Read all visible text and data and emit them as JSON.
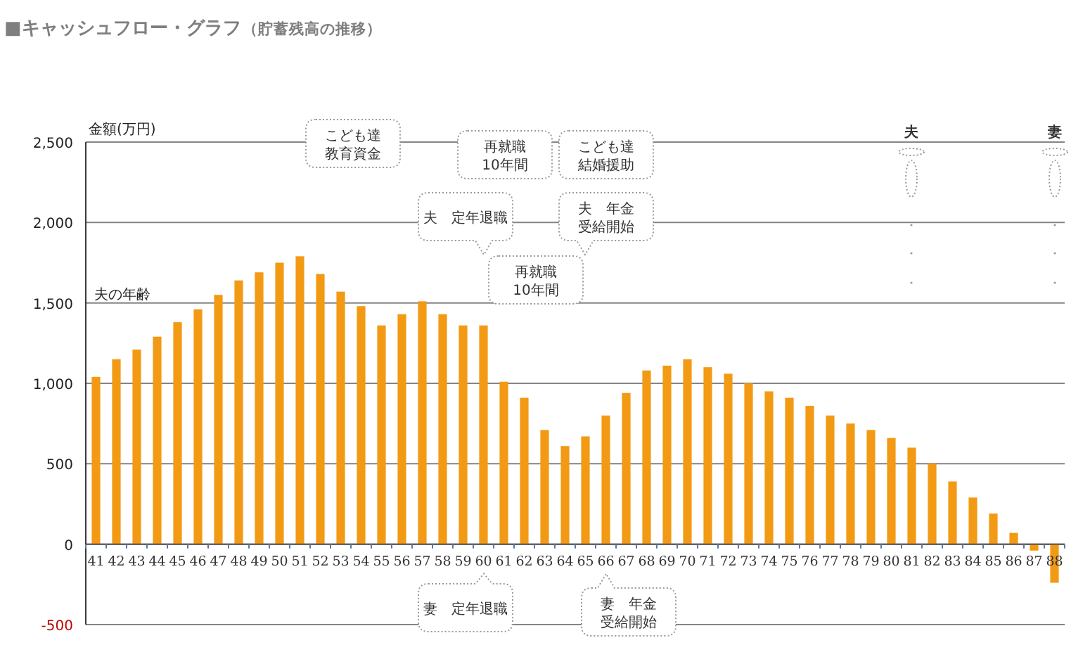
{
  "chart_data": {
    "type": "bar",
    "title": "■キャッシュフロー・グラフ",
    "subtitle": "（貯蓄残高の推移）",
    "xlabel": "夫の年齢",
    "ylabel": "金額(万円)",
    "categories": [
      "41",
      "42",
      "43",
      "44",
      "45",
      "46",
      "47",
      "48",
      "49",
      "50",
      "51",
      "52",
      "53",
      "54",
      "55",
      "56",
      "57",
      "58",
      "59",
      "60",
      "61",
      "62",
      "63",
      "64",
      "65",
      "66",
      "67",
      "68",
      "69",
      "70",
      "71",
      "72",
      "73",
      "74",
      "75",
      "76",
      "77",
      "78",
      "79",
      "80",
      "81",
      "82",
      "83",
      "84",
      "85",
      "86",
      "87",
      "88"
    ],
    "values": [
      1040,
      1150,
      1210,
      1290,
      1380,
      1460,
      1550,
      1640,
      1690,
      1750,
      1790,
      1680,
      1570,
      1480,
      1360,
      1430,
      1510,
      1430,
      1360,
      1360,
      1010,
      910,
      710,
      610,
      670,
      800,
      940,
      1080,
      1110,
      1150,
      1100,
      1060,
      1000,
      950,
      910,
      860,
      800,
      750,
      710,
      660,
      600,
      500,
      390,
      290,
      190,
      70,
      -40,
      -240
    ],
    "color": "#f39a14",
    "ylim": [
      -500,
      2500
    ],
    "yticks": [
      {
        "value": 2500,
        "label": "2,500"
      },
      {
        "value": 2000,
        "label": "2,000"
      },
      {
        "value": 1500,
        "label": "1,500"
      },
      {
        "value": 1000,
        "label": "1,000"
      },
      500,
      0,
      -500
    ],
    "grid": "y",
    "annotations": [
      "こども達教育資金",
      "再就職10年間",
      "こども達結婚援助",
      "夫　定年退職",
      "夫　年金受給開始",
      "再就職10年間",
      "妻　定年退職",
      "妻　年金受給開始",
      "夫",
      "妻"
    ]
  }
}
